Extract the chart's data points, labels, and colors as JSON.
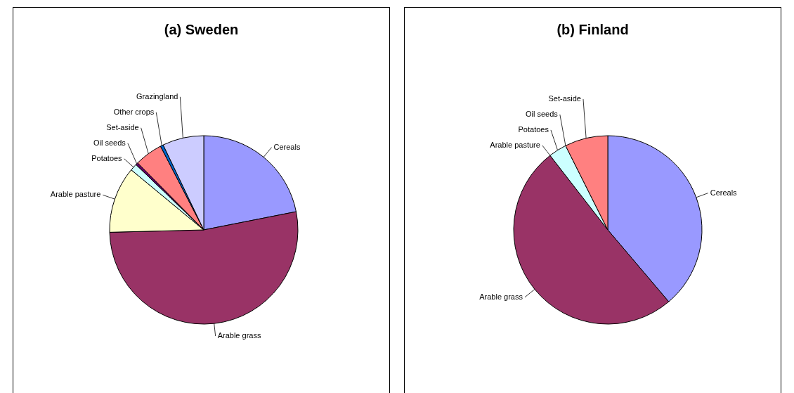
{
  "chart_data": [
    {
      "type": "pie",
      "title": "(a) Sweden",
      "categories": [
        "Cereals",
        "Arable grass",
        "Arable pasture",
        "Potatoes",
        "Oil seeds",
        "Set-aside",
        "Other crops",
        "Grazingland"
      ],
      "values": [
        21.9,
        52.7,
        11.4,
        1.2,
        0.4,
        4.8,
        0.5,
        7.1
      ],
      "colors": [
        "#9999ff",
        "#993366",
        "#ffffcc",
        "#ccffff",
        "#660066",
        "#ff8080",
        "#0066cc",
        "#ccccff"
      ]
    },
    {
      "type": "pie",
      "title": "(b) Finland",
      "categories": [
        "Cereals",
        "Arable grass",
        "Arable pasture",
        "Potatoes",
        "Oil seeds",
        "Set-aside"
      ],
      "values": [
        38.8,
        50.7,
        null,
        3.1,
        null,
        7.4
      ],
      "colors": [
        "#9999ff",
        "#993366",
        "#ffffcc",
        "#ccffff",
        "#660066",
        "#ff8080"
      ]
    }
  ]
}
